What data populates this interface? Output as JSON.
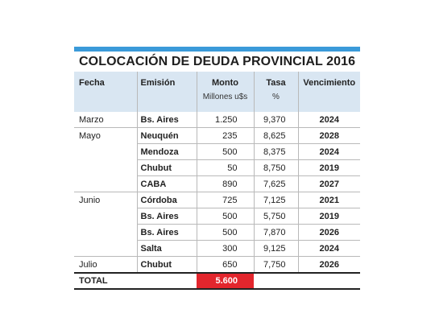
{
  "title": "COLOCACIÓN DE DEUDA PROVINCIAL 2016",
  "headers": {
    "fecha": "Fecha",
    "emision": "Emisión",
    "monto": "Monto",
    "monto_sub": "Millones u$s",
    "tasa": "Tasa",
    "tasa_sub": "%",
    "vencimiento": "Vencimiento"
  },
  "rows": [
    {
      "fecha": "Marzo",
      "emision": "Bs. Aires",
      "monto": "1.250",
      "tasa": "9,370",
      "vencimiento": "2024"
    },
    {
      "fecha": "Mayo",
      "emision": "Neuquén",
      "monto": "235",
      "tasa": "8,625",
      "vencimiento": "2028"
    },
    {
      "fecha": "",
      "emision": "Mendoza",
      "monto": "500",
      "tasa": "8,375",
      "vencimiento": "2024"
    },
    {
      "fecha": "",
      "emision": "Chubut",
      "monto": "50",
      "tasa": "8,750",
      "vencimiento": "2019"
    },
    {
      "fecha": "",
      "emision": "CABA",
      "monto": "890",
      "tasa": "7,625",
      "vencimiento": "2027"
    },
    {
      "fecha": "Junio",
      "emision": "Córdoba",
      "monto": "725",
      "tasa": "7,125",
      "vencimiento": "2021"
    },
    {
      "fecha": "",
      "emision": "Bs. Aires",
      "monto": "500",
      "tasa": "5,750",
      "vencimiento": "2019"
    },
    {
      "fecha": "",
      "emision": "Bs. Aires",
      "monto": "500",
      "tasa": "7,870",
      "vencimiento": "2026"
    },
    {
      "fecha": "",
      "emision": "Salta",
      "monto": "300",
      "tasa": "9,125",
      "vencimiento": "2024"
    },
    {
      "fecha": "Julio",
      "emision": "Chubut",
      "monto": "650",
      "tasa": "7,750",
      "vencimiento": "2026"
    }
  ],
  "total": {
    "label": "TOTAL",
    "monto": "5.600"
  },
  "colors": {
    "accent_bar": "#3a9ad9",
    "header_bg": "#d9e6f2",
    "total_highlight": "#e3262d"
  }
}
